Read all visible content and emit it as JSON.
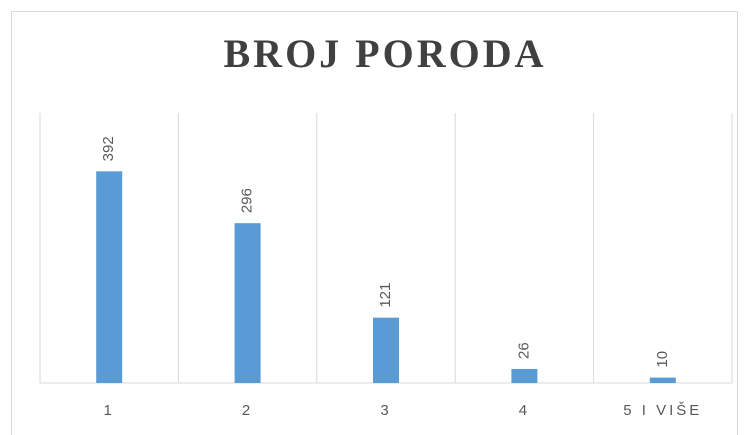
{
  "chart_data": {
    "type": "bar",
    "title": "BROJ PORODA",
    "categories": [
      "1",
      "2",
      "3",
      "4",
      "5 I VIŠE"
    ],
    "values": [
      392,
      296,
      121,
      26,
      10
    ],
    "color": "#5b9bd5",
    "ylim": [
      0,
      500
    ]
  }
}
